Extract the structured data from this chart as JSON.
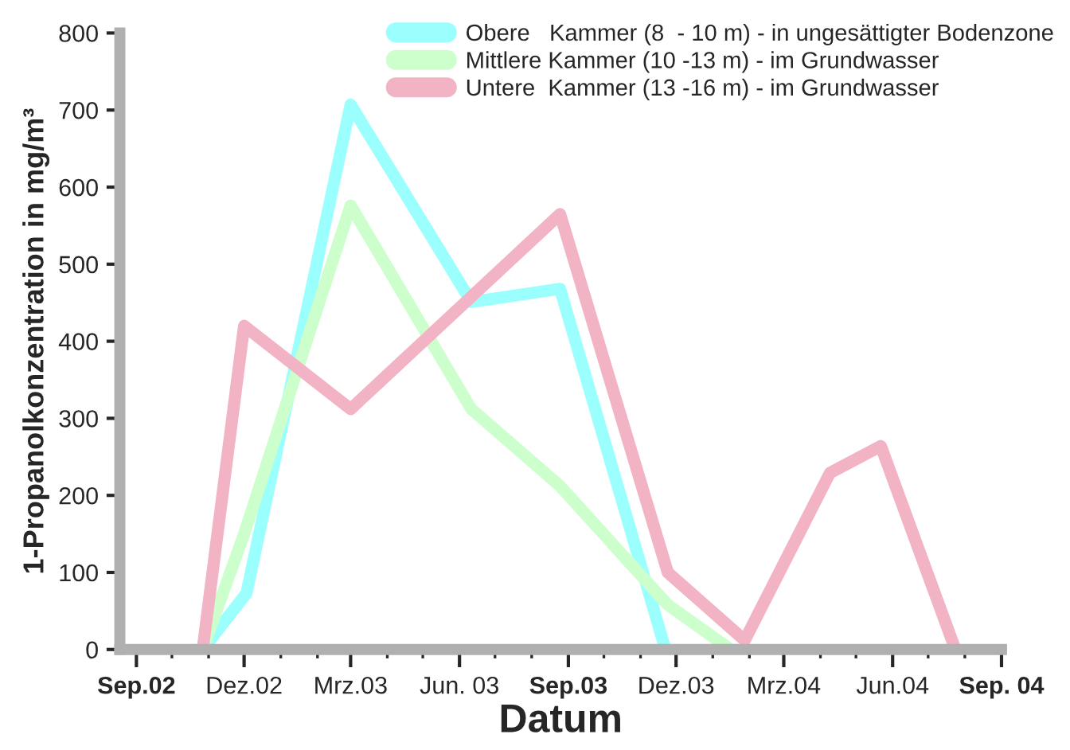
{
  "chart_data": {
    "type": "line",
    "xlabel": "Datum",
    "ylabel": "1-Propanolkonzentration in mg/m³",
    "series": [
      {
        "name": "Obere   Kammer (8  - 10 m) - in ungesättigter Bodenzone",
        "color": "#9bfffe",
        "x": [
          "2002-10-27",
          "2002-12-03",
          "2003-03-01",
          "2003-06-11",
          "2003-08-25",
          "2003-11-22"
        ],
        "values": [
          0,
          73,
          707,
          451,
          468,
          0
        ]
      },
      {
        "name": "Mittlere Kammer (10 -13 m) - im Grundwasser",
        "color": "#ccffcc",
        "x": [
          "2002-10-27",
          "2002-12-01",
          "2003-03-01",
          "2003-06-11",
          "2003-08-25",
          "2003-11-24",
          "2004-01-16"
        ],
        "values": [
          0,
          150,
          576,
          312,
          212,
          58,
          0
        ]
      },
      {
        "name": "Untere  Kammer (13 -16 m) - im Grundwasser",
        "color": "#f2b3c4",
        "x": [
          "2002-10-27",
          "2002-12-01",
          "2003-03-01",
          "2003-08-25",
          "2003-11-24",
          "2004-01-28",
          "2004-04-09",
          "2004-05-22",
          "2004-07-24"
        ],
        "values": [
          0,
          420,
          312,
          565,
          100,
          12,
          229,
          264,
          0
        ]
      }
    ],
    "xlim": [
      "2002-08-18",
      "2004-09-01"
    ],
    "xticks": [
      {
        "value": "2002-09-01",
        "label": "Sep.02"
      },
      {
        "value": "2002-12-01",
        "label": "Dez.02"
      },
      {
        "value": "2003-03-01",
        "label": "Mrz.03"
      },
      {
        "value": "2003-06-01",
        "label": "Jun. 03"
      },
      {
        "value": "2003-09-01",
        "label": "Sep.03"
      },
      {
        "value": "2003-12-01",
        "label": "Dez.03"
      },
      {
        "value": "2004-03-01",
        "label": "Mrz.04"
      },
      {
        "value": "2004-06-01",
        "label": "Jun.04"
      },
      {
        "value": "2004-09-01",
        "label": "Sep. 04"
      }
    ],
    "ylim": [
      0,
      800
    ],
    "yticks": [
      0,
      100,
      200,
      300,
      400,
      500,
      600,
      700,
      800
    ],
    "legend": "top right",
    "grid": false,
    "marker": "none",
    "line_style": "solid"
  }
}
